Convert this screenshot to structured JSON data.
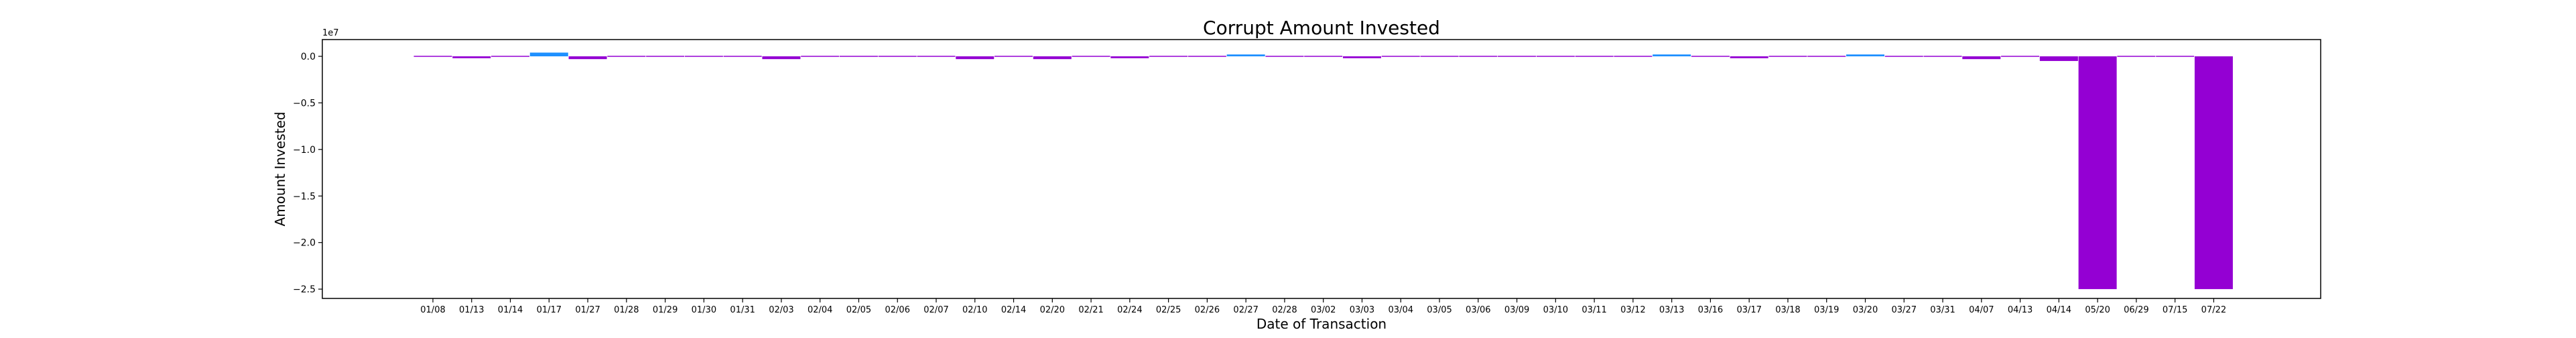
{
  "chart_data": {
    "type": "bar",
    "title": "Corrupt Amount Invested",
    "xlabel": "Date of Transaction",
    "ylabel": "Amount Invested",
    "y_multiplier_label": "1e7",
    "y_scale": 10000000,
    "ylim": [
      -2.6,
      0.18
    ],
    "yticks": [
      0.0,
      -0.5,
      -1.0,
      -1.5,
      -2.0,
      -2.5
    ],
    "ytick_labels": [
      "0.0",
      "−0.5",
      "−1.0",
      "−1.5",
      "−2.0",
      "−2.5"
    ],
    "grid": false,
    "colors": {
      "positive": "#1e90ff",
      "negative": "#9400d3",
      "axis": "#000000"
    },
    "categories": [
      "01/08",
      "01/13",
      "01/14",
      "01/17",
      "01/27",
      "01/28",
      "01/29",
      "01/30",
      "01/31",
      "02/03",
      "02/04",
      "02/05",
      "02/06",
      "02/07",
      "02/10",
      "02/14",
      "02/20",
      "02/21",
      "02/24",
      "02/25",
      "02/26",
      "02/27",
      "02/28",
      "03/02",
      "03/03",
      "03/04",
      "03/05",
      "03/06",
      "03/09",
      "03/10",
      "03/11",
      "03/12",
      "03/13",
      "03/16",
      "03/17",
      "03/18",
      "03/19",
      "03/20",
      "03/27",
      "03/31",
      "04/07",
      "04/13",
      "04/14",
      "05/20",
      "06/29",
      "07/15",
      "07/22"
    ],
    "values": [
      -0.01,
      -0.02,
      -0.01,
      0.04,
      -0.03,
      -0.01,
      -0.01,
      -0.01,
      -0.01,
      -0.03,
      -0.01,
      -0.01,
      -0.01,
      -0.01,
      -0.03,
      -0.01,
      -0.03,
      -0.01,
      -0.02,
      -0.01,
      -0.01,
      0.02,
      0.0,
      -0.01,
      -0.02,
      -0.01,
      -0.01,
      0.0,
      -0.01,
      -0.01,
      -0.01,
      0.0,
      0.02,
      -0.01,
      -0.02,
      -0.01,
      0.0,
      0.02,
      0.0,
      0.0,
      -0.03,
      -0.01,
      -0.05,
      -2.5,
      -0.01,
      -0.01,
      -2.5
    ]
  }
}
